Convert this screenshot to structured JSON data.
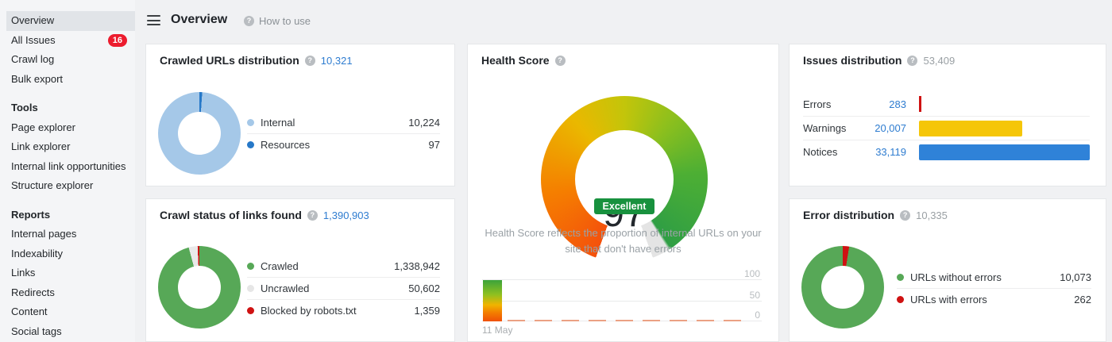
{
  "header": {
    "title": "Overview",
    "help_label": "How to use"
  },
  "sidebar": {
    "items": [
      {
        "label": "Overview"
      },
      {
        "label": "All Issues",
        "badge": "16"
      },
      {
        "label": "Crawl log"
      },
      {
        "label": "Bulk export"
      }
    ],
    "tools": {
      "title": "Tools",
      "items": [
        {
          "label": "Page explorer"
        },
        {
          "label": "Link explorer"
        },
        {
          "label": "Internal link opportunities"
        },
        {
          "label": "Structure explorer"
        }
      ]
    },
    "reports": {
      "title": "Reports",
      "items": [
        {
          "label": "Internal pages"
        },
        {
          "label": "Indexability"
        },
        {
          "label": "Links"
        },
        {
          "label": "Redirects"
        },
        {
          "label": "Content"
        },
        {
          "label": "Social tags"
        }
      ]
    }
  },
  "crawled_urls": {
    "title": "Crawled URLs distribution",
    "total": "10,321",
    "legend": [
      {
        "label": "Internal",
        "value": "10,224",
        "color": "#a5c8e8"
      },
      {
        "label": "Resources",
        "value": "97",
        "color": "#2678c8"
      }
    ]
  },
  "crawl_status": {
    "title": "Crawl status of links found",
    "total": "1,390,903",
    "legend": [
      {
        "label": "Crawled",
        "value": "1,338,942",
        "color": "#57a857"
      },
      {
        "label": "Uncrawled",
        "value": "50,602",
        "color": "#e6e6e6"
      },
      {
        "label": "Blocked by robots.txt",
        "value": "1,359",
        "color": "#cf1212"
      }
    ]
  },
  "health_score": {
    "title": "Health Score",
    "score": "97",
    "rating": "Excellent",
    "description": "Health Score reflects the proportion of internal URLs on your site that don't have errors",
    "history": {
      "date_label": "11 May",
      "y_ticks": [
        "100",
        "50",
        "0"
      ]
    }
  },
  "issues": {
    "title": "Issues distribution",
    "total": "53,409",
    "rows": [
      {
        "label": "Errors",
        "value": "283",
        "color": "#cf1212"
      },
      {
        "label": "Warnings",
        "value": "20,007",
        "color": "#f5c608"
      },
      {
        "label": "Notices",
        "value": "33,119",
        "color": "#2f82d8"
      }
    ]
  },
  "error_distribution": {
    "title": "Error distribution",
    "total": "10,335",
    "legend": [
      {
        "label": "URLs without errors",
        "value": "10,073",
        "color": "#57a857"
      },
      {
        "label": "URLs with errors",
        "value": "262",
        "color": "#cf1212"
      }
    ]
  },
  "chart_data": [
    {
      "type": "pie",
      "title": "Crawled URLs distribution",
      "labels": [
        "Internal",
        "Resources"
      ],
      "values": [
        10224,
        97
      ],
      "colors": [
        "#a5c8e8",
        "#2678c8"
      ],
      "total": 10321
    },
    {
      "type": "pie",
      "title": "Crawl status of links found",
      "labels": [
        "Crawled",
        "Uncrawled",
        "Blocked by robots.txt"
      ],
      "values": [
        1338942,
        50602,
        1359
      ],
      "colors": [
        "#57a857",
        "#e6e6e6",
        "#cf1212"
      ],
      "total": 1390903
    },
    {
      "type": "gauge",
      "title": "Health Score",
      "value": 97,
      "min": 0,
      "max": 100,
      "rating": "Excellent",
      "gradient": [
        "#f4510c",
        "#eab800",
        "#2f9e44"
      ]
    },
    {
      "type": "line",
      "title": "Health Score history",
      "x": [
        "11 May"
      ],
      "values": [
        97
      ],
      "ylim": [
        0,
        100
      ],
      "y_ticks": [
        100,
        50,
        0
      ]
    },
    {
      "type": "bar",
      "title": "Issues distribution",
      "categories": [
        "Errors",
        "Warnings",
        "Notices"
      ],
      "values": [
        283,
        20007,
        33119
      ],
      "colors": [
        "#cf1212",
        "#f5c608",
        "#2f82d8"
      ],
      "total": 53409
    },
    {
      "type": "pie",
      "title": "Error distribution",
      "labels": [
        "URLs without errors",
        "URLs with errors"
      ],
      "values": [
        10073,
        262
      ],
      "colors": [
        "#57a857",
        "#cf1212"
      ],
      "total": 10335
    }
  ]
}
